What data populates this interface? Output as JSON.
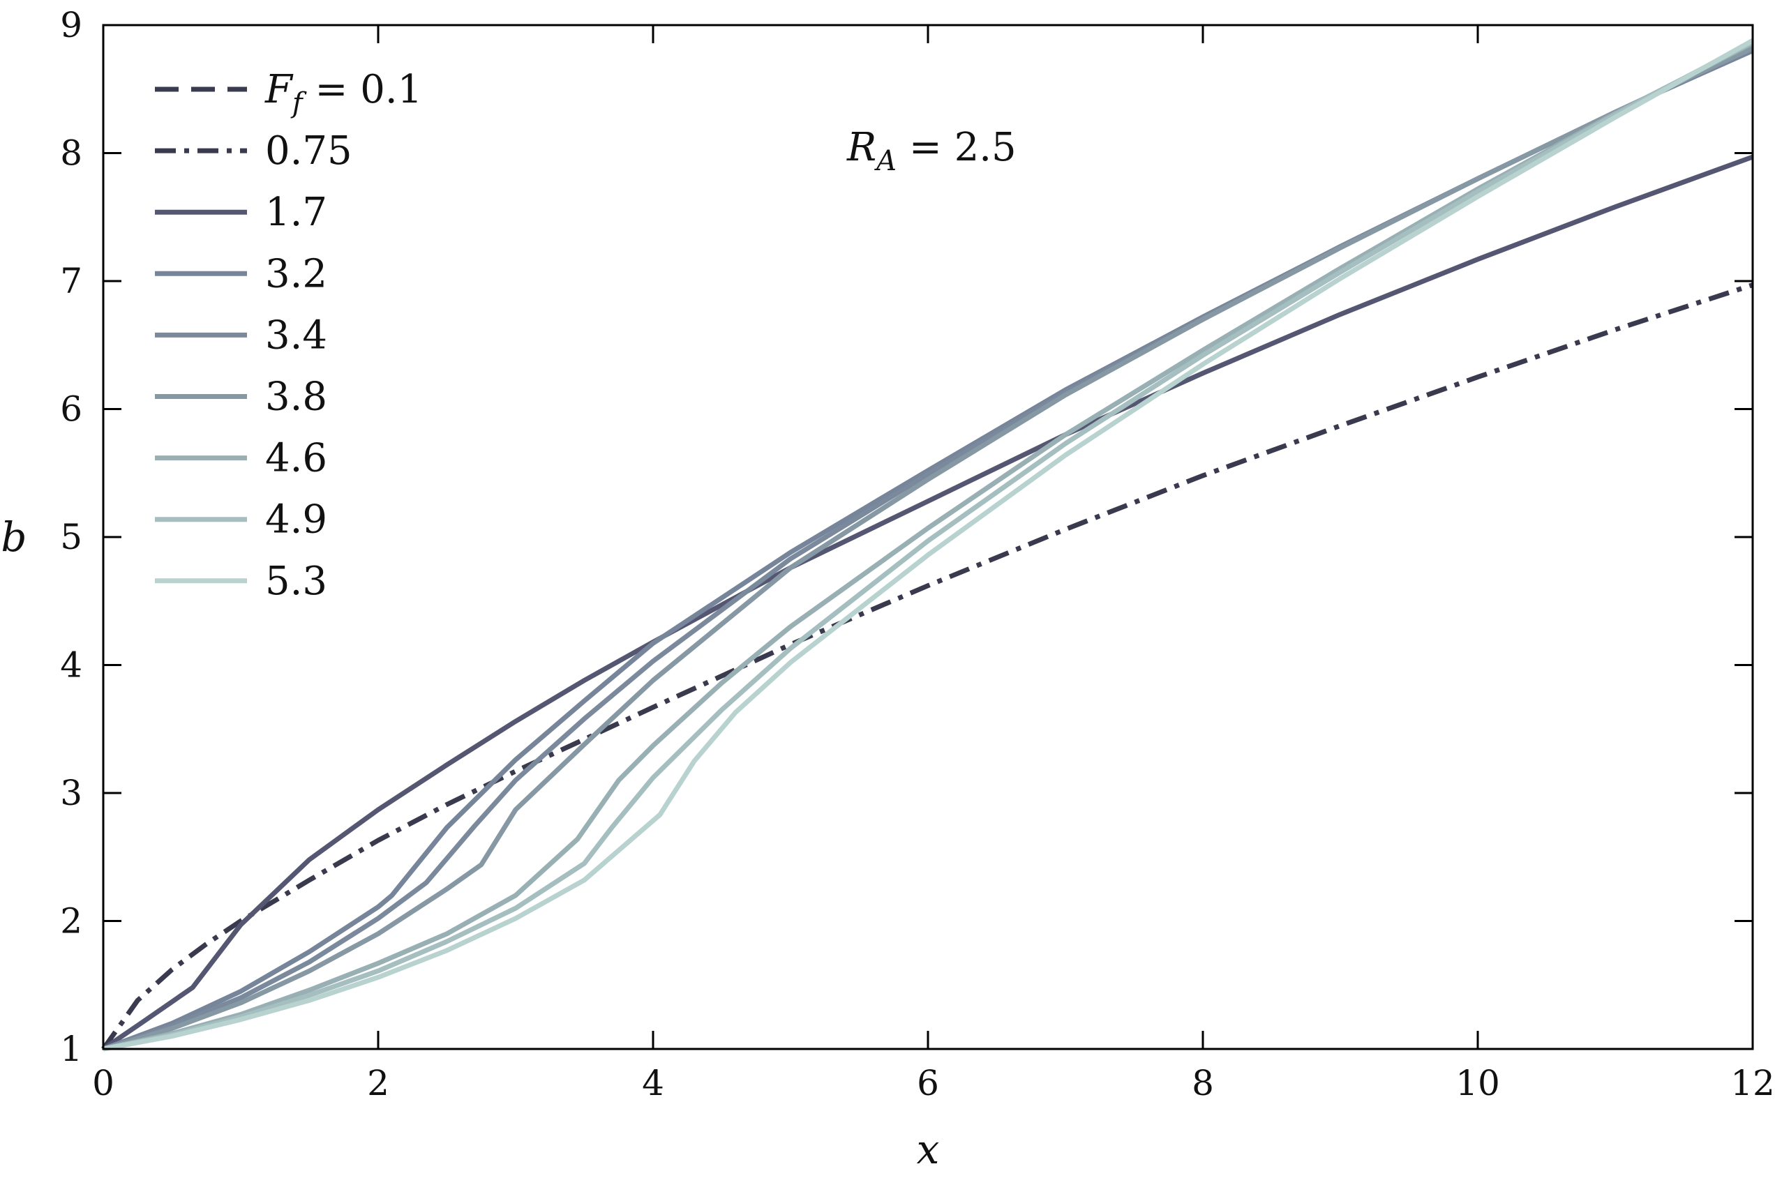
{
  "chart_data": {
    "type": "line",
    "title": "",
    "xlabel": "x",
    "ylabel": "b",
    "xlim": [
      0,
      12
    ],
    "ylim": [
      1,
      9
    ],
    "xticks": [
      "0",
      "2",
      "4",
      "6",
      "8",
      "10",
      "12"
    ],
    "yticks": [
      "1",
      "2",
      "3",
      "4",
      "5",
      "6",
      "7",
      "8",
      "9"
    ],
    "grid": false,
    "legend_location": "top-left",
    "legend_symbol": "F",
    "legend_subscript": "f",
    "legend_first_prefix": " = ",
    "annotation": {
      "symbol": "R",
      "subscript": "A",
      "text": " = 2.5"
    },
    "series": [
      {
        "name": "0.1",
        "label_text": "0.1",
        "color": "#3a3a4e",
        "dash": "dashed",
        "x": [],
        "y": []
      },
      {
        "name": "0.75",
        "label_text": "0.75",
        "color": "#3a3a4e",
        "dash": "dashdot",
        "x": [
          0,
          0.25,
          0.5,
          0.75,
          1,
          1.5,
          2,
          2.5,
          3,
          4,
          5,
          6,
          7,
          8,
          9,
          10,
          11,
          12
        ],
        "y": [
          1,
          1.38,
          1.62,
          1.82,
          2.0,
          2.32,
          2.63,
          2.91,
          3.17,
          3.67,
          4.16,
          4.62,
          5.06,
          5.48,
          5.87,
          6.25,
          6.62,
          6.97
        ]
      },
      {
        "name": "1.7",
        "label_text": "1.7",
        "color": "#555772",
        "dash": "solid",
        "x": [
          0,
          0.3,
          0.65,
          1,
          1.5,
          2,
          2.5,
          3,
          3.5,
          4,
          5,
          6,
          7,
          8,
          9,
          10,
          11,
          12
        ],
        "y": [
          1,
          1.22,
          1.48,
          1.97,
          2.48,
          2.87,
          3.22,
          3.56,
          3.88,
          4.18,
          4.76,
          5.28,
          5.8,
          6.28,
          6.74,
          7.17,
          7.58,
          7.97
        ]
      },
      {
        "name": "3.2",
        "label_text": "3.2",
        "color": "#76859a",
        "dash": "solid",
        "x": [
          0,
          0.5,
          1,
          1.5,
          2,
          2.1,
          2.5,
          3,
          3.5,
          4,
          5,
          6,
          7,
          8,
          9,
          10,
          11,
          12
        ],
        "y": [
          1,
          1.2,
          1.45,
          1.76,
          2.11,
          2.2,
          2.73,
          3.26,
          3.72,
          4.17,
          4.88,
          5.52,
          6.15,
          6.72,
          7.27,
          7.8,
          8.32,
          8.8
        ]
      },
      {
        "name": "3.4",
        "label_text": "3.4",
        "color": "#7a8a9c",
        "dash": "solid",
        "x": [
          0,
          0.5,
          1,
          1.5,
          2,
          2.35,
          2.7,
          3,
          3.5,
          4,
          5,
          6,
          7,
          8,
          9,
          10,
          11,
          12
        ],
        "y": [
          1,
          1.18,
          1.4,
          1.68,
          2.02,
          2.3,
          2.74,
          3.1,
          3.58,
          4.03,
          4.83,
          5.49,
          6.13,
          6.71,
          7.27,
          7.8,
          8.32,
          8.82
        ]
      },
      {
        "name": "3.8",
        "label_text": "3.8",
        "color": "#8598a4",
        "dash": "solid",
        "x": [
          0,
          0.5,
          1,
          1.5,
          2,
          2.5,
          2.75,
          3,
          3.5,
          4,
          5,
          6,
          7,
          8,
          9,
          10,
          11,
          12
        ],
        "y": [
          1,
          1.16,
          1.36,
          1.61,
          1.9,
          2.25,
          2.44,
          2.87,
          3.38,
          3.88,
          4.76,
          5.45,
          6.11,
          6.7,
          7.26,
          7.8,
          8.32,
          8.82
        ]
      },
      {
        "name": "4.6",
        "label_text": "4.6",
        "color": "#98b0b4",
        "dash": "solid",
        "x": [
          0,
          0.5,
          1,
          1.5,
          2,
          2.5,
          3,
          3.45,
          3.75,
          4,
          4.5,
          5,
          6,
          7,
          8,
          9,
          10,
          11,
          12
        ],
        "y": [
          1,
          1.12,
          1.27,
          1.46,
          1.67,
          1.9,
          2.2,
          2.64,
          3.1,
          3.37,
          3.86,
          4.3,
          5.07,
          5.8,
          6.46,
          7.1,
          7.72,
          8.31,
          8.86
        ]
      },
      {
        "name": "4.9",
        "label_text": "4.9",
        "color": "#a5bebf",
        "dash": "solid",
        "x": [
          0,
          0.5,
          1,
          1.5,
          2,
          2.5,
          3,
          3.5,
          3.7,
          4,
          4.5,
          5,
          6,
          7,
          8,
          9,
          10,
          11,
          12
        ],
        "y": [
          1,
          1.11,
          1.25,
          1.42,
          1.61,
          1.84,
          2.1,
          2.45,
          2.73,
          3.12,
          3.65,
          4.13,
          4.97,
          5.73,
          6.42,
          7.07,
          7.7,
          8.3,
          8.87
        ]
      },
      {
        "name": "5.3",
        "label_text": "5.3",
        "color": "#b8d2d0",
        "dash": "solid",
        "x": [
          0,
          0.5,
          1,
          1.5,
          2,
          2.5,
          3,
          3.5,
          4.05,
          4.3,
          4.6,
          5,
          6,
          7,
          8,
          9,
          10,
          11,
          12
        ],
        "y": [
          1,
          1.1,
          1.23,
          1.38,
          1.56,
          1.77,
          2.02,
          2.32,
          2.83,
          3.25,
          3.63,
          4.02,
          4.86,
          5.64,
          6.35,
          7.02,
          7.66,
          8.28,
          8.88
        ]
      }
    ]
  }
}
